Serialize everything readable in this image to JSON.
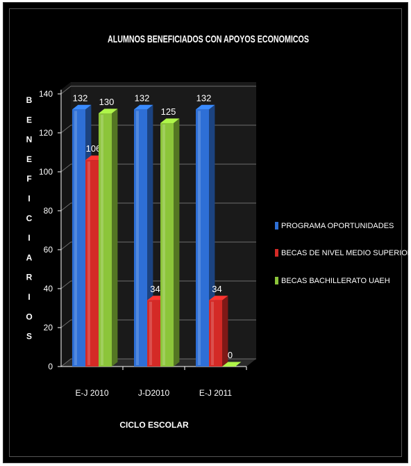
{
  "chart_data": {
    "type": "bar",
    "title": "ALUMNOS BENEFICIADOS CON APOYOS ECONOMICOS",
    "xlabel": "CICLO ESCOLAR",
    "ylabel": "BENEFICIARIOS",
    "ylim": [
      0,
      140
    ],
    "yticks": [
      "0",
      "20",
      "40",
      "60",
      "80",
      "100",
      "120",
      "140"
    ],
    "categories": [
      "E-J 2010",
      "J-D2010",
      "E-J 2011"
    ],
    "series": [
      {
        "name": "PROGRAMA OPORTUNIDADES",
        "values": [
          132,
          132,
          132
        ],
        "labels": [
          "132",
          "132",
          "132"
        ],
        "color": "#2e6fd6"
      },
      {
        "name": "BECAS DE NIVEL MEDIO SUPERIOR SEP",
        "values": [
          106,
          34,
          34
        ],
        "labels": [
          "106",
          "34",
          "34"
        ],
        "color": "#d42a26"
      },
      {
        "name": "BECAS BACHILLERATO UAEH",
        "values": [
          130,
          125,
          0
        ],
        "labels": [
          "130",
          "125",
          "0"
        ],
        "color": "#8cc53a"
      }
    ],
    "grid": true,
    "legend": "right",
    "background": "#000000"
  }
}
